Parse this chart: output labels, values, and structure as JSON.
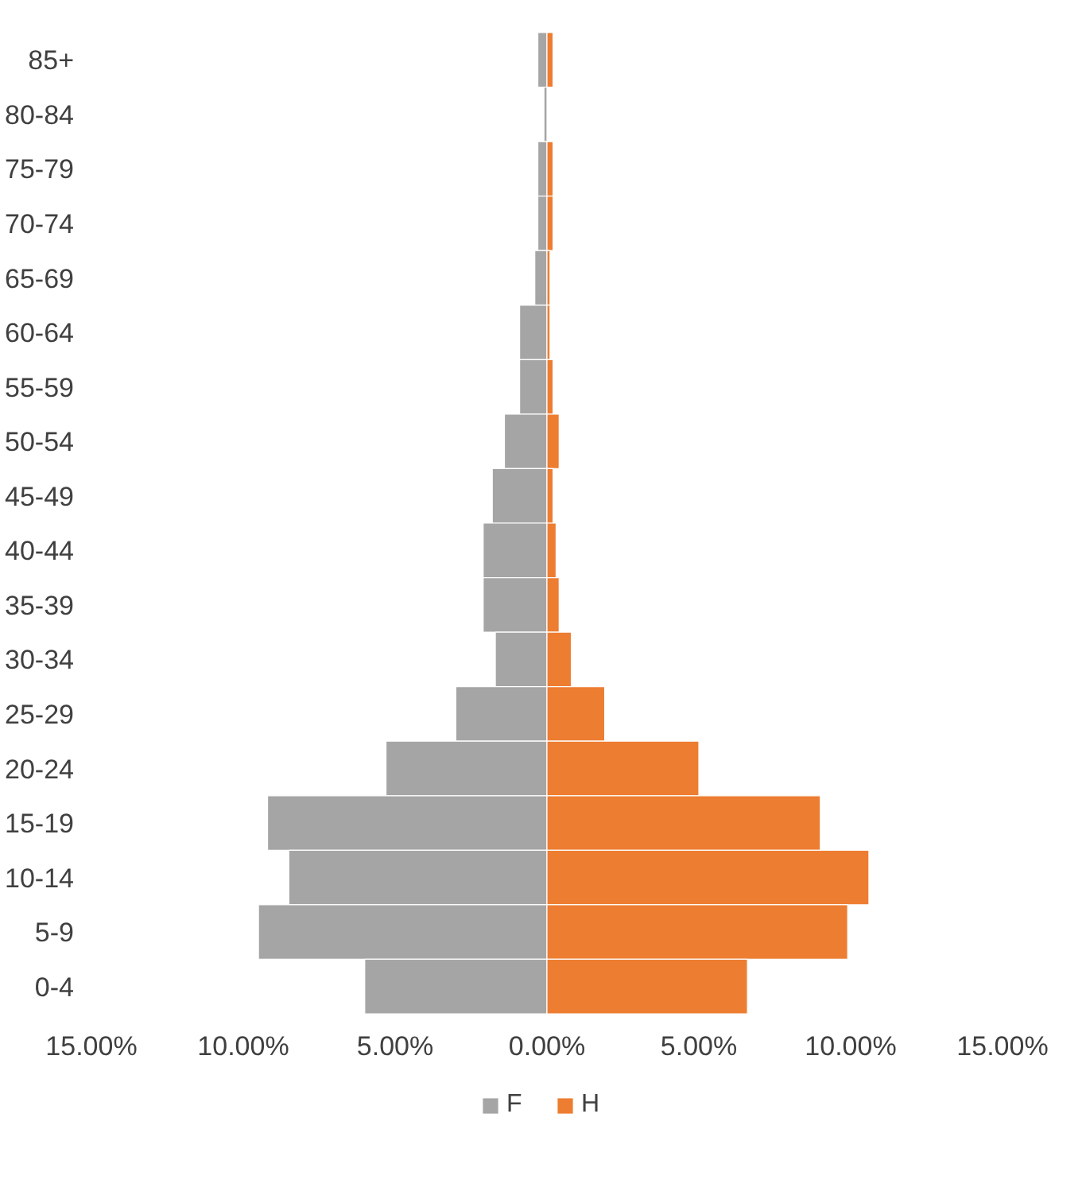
{
  "chart_data": {
    "type": "bar",
    "orientation": "horizontal",
    "categories": [
      "85+",
      "80-84",
      "75-79",
      "70-74",
      "65-69",
      "60-64",
      "55-59",
      "50-54",
      "45-49",
      "40-44",
      "35-39",
      "30-34",
      "25-29",
      "20-24",
      "15-19",
      "10-14",
      "5-9",
      "0-4"
    ],
    "series": [
      {
        "name": "F",
        "color": "#a5a5a5",
        "values": [
          -0.3,
          -0.1,
          -0.3,
          -0.3,
          -0.4,
          -0.9,
          -0.9,
          -1.4,
          -1.8,
          -2.1,
          -2.1,
          -1.7,
          -3.0,
          -5.3,
          -9.2,
          -8.5,
          -9.5,
          -6.0
        ]
      },
      {
        "name": "H",
        "color": "#ed7d31",
        "values": [
          0.2,
          null,
          0.2,
          0.2,
          0.1,
          0.1,
          0.2,
          0.4,
          0.2,
          0.3,
          0.4,
          0.8,
          1.9,
          5.0,
          9.0,
          10.6,
          9.9,
          6.6
        ]
      }
    ],
    "xlim": [
      -15,
      15
    ],
    "xticks": [
      {
        "value": -15,
        "label": "15.00%"
      },
      {
        "value": -10,
        "label": "10.00%"
      },
      {
        "value": -5,
        "label": "5.00%"
      },
      {
        "value": 0,
        "label": "0.00%"
      },
      {
        "value": 5,
        "label": "5.00%"
      },
      {
        "value": 10,
        "label": "10.00%"
      },
      {
        "value": 15,
        "label": "15.00%"
      }
    ],
    "grid": false,
    "stacked": true,
    "legend": "bottom"
  }
}
